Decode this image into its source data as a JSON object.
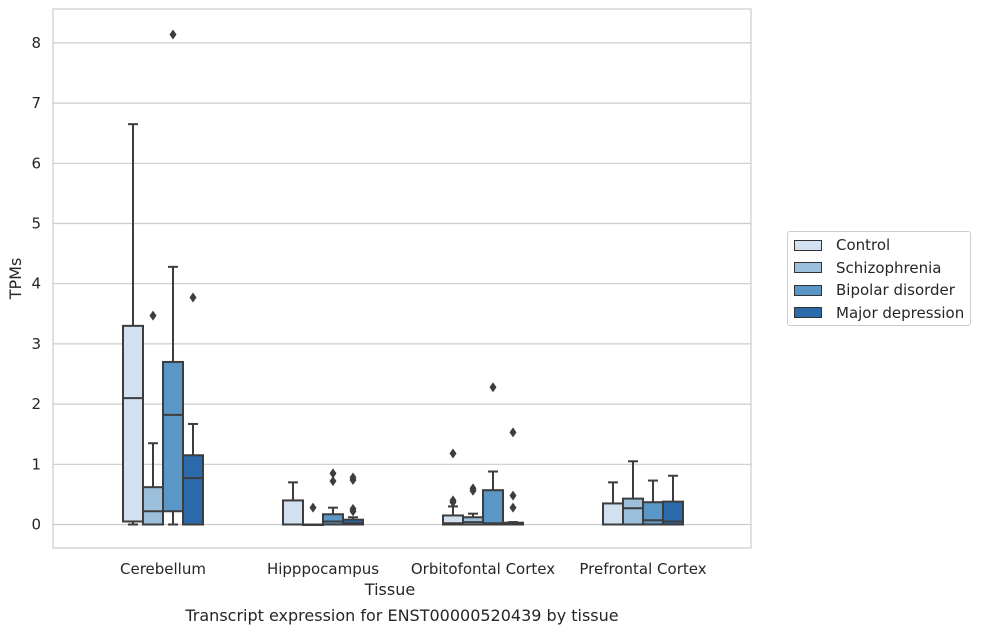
{
  "caption": "Transcript expression for ENST00000520439 by tissue",
  "chart_data": {
    "type": "boxplot",
    "xlabel": "Tissue",
    "ylabel": "TPMs",
    "ylim": [
      -0.4,
      8.55
    ],
    "yticks": [
      0,
      1,
      2,
      3,
      4,
      5,
      6,
      7,
      8
    ],
    "grid": true,
    "legend_position": "right",
    "categories": [
      "Cerebellum",
      "Hipppocampus",
      "Orbitofontal Cortex",
      "Prefrontal Cortex"
    ],
    "series": [
      {
        "name": "Control",
        "color": "#d1e1f0",
        "boxes": [
          {
            "whislo": 0.0,
            "q1": 0.05,
            "med": 2.1,
            "q3": 3.3,
            "whishi": 6.65,
            "fliers": []
          },
          {
            "whislo": 0.0,
            "q1": 0.0,
            "med": 0.0,
            "q3": 0.4,
            "whishi": 0.7,
            "fliers": []
          },
          {
            "whislo": 0.0,
            "q1": 0.0,
            "med": 0.02,
            "q3": 0.15,
            "whishi": 0.3,
            "fliers": [
              0.37,
              0.4,
              1.18
            ]
          },
          {
            "whislo": 0.0,
            "q1": 0.0,
            "med": 0.0,
            "q3": 0.35,
            "whishi": 0.7,
            "fliers": []
          }
        ]
      },
      {
        "name": "Schizophrenia",
        "color": "#9cc0dc",
        "boxes": [
          {
            "whislo": 0.0,
            "q1": 0.0,
            "med": 0.22,
            "q3": 0.62,
            "whishi": 1.35,
            "fliers": [
              3.47
            ]
          },
          {
            "whislo": 0.0,
            "q1": 0.0,
            "med": 0.0,
            "q3": 0.0,
            "whishi": 0.0,
            "fliers": [
              0.28
            ]
          },
          {
            "whislo": 0.0,
            "q1": 0.0,
            "med": 0.04,
            "q3": 0.12,
            "whishi": 0.18,
            "fliers": [
              0.56,
              0.6
            ]
          },
          {
            "whislo": 0.0,
            "q1": 0.0,
            "med": 0.27,
            "q3": 0.43,
            "whishi": 1.05,
            "fliers": []
          }
        ]
      },
      {
        "name": "Bipolar disorder",
        "color": "#5b97c6",
        "boxes": [
          {
            "whislo": 0.0,
            "q1": 0.22,
            "med": 1.82,
            "q3": 2.7,
            "whishi": 4.28,
            "fliers": [
              8.14
            ]
          },
          {
            "whislo": 0.0,
            "q1": 0.0,
            "med": 0.05,
            "q3": 0.17,
            "whishi": 0.28,
            "fliers": [
              0.72,
              0.85
            ]
          },
          {
            "whislo": 0.0,
            "q1": 0.0,
            "med": 0.02,
            "q3": 0.57,
            "whishi": 0.88,
            "fliers": [
              2.28
            ]
          },
          {
            "whislo": 0.0,
            "q1": 0.0,
            "med": 0.07,
            "q3": 0.37,
            "whishi": 0.73,
            "fliers": []
          }
        ]
      },
      {
        "name": "Major depression",
        "color": "#2a6aab",
        "boxes": [
          {
            "whislo": 0.0,
            "q1": 0.0,
            "med": 0.77,
            "q3": 1.15,
            "whishi": 1.67,
            "fliers": [
              3.77
            ]
          },
          {
            "whislo": 0.0,
            "q1": 0.0,
            "med": 0.02,
            "q3": 0.08,
            "whishi": 0.12,
            "fliers": [
              0.22,
              0.26,
              0.74,
              0.78
            ]
          },
          {
            "whislo": 0.0,
            "q1": 0.0,
            "med": 0.01,
            "q3": 0.03,
            "whishi": 0.04,
            "fliers": [
              0.28,
              0.48,
              1.53
            ]
          },
          {
            "whislo": 0.0,
            "q1": 0.0,
            "med": 0.05,
            "q3": 0.38,
            "whishi": 0.81,
            "fliers": []
          }
        ]
      }
    ]
  }
}
